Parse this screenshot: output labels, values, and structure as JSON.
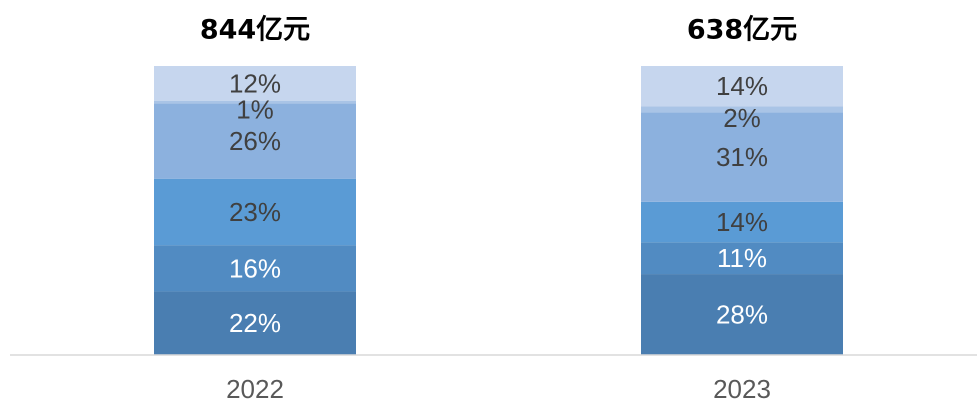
{
  "chart_data": {
    "type": "bar",
    "stacked": true,
    "percent_stacked": true,
    "categories": [
      "2022",
      "2023"
    ],
    "totals": [
      "844亿元",
      "638亿元"
    ],
    "series": [
      {
        "values": [
          22,
          28
        ],
        "labels": [
          "22%",
          "28%"
        ],
        "color": "#4a7eb1",
        "label_color": "#ffffff"
      },
      {
        "values": [
          16,
          11
        ],
        "labels": [
          "16%",
          "11%"
        ],
        "color": "#518bc2",
        "label_color": "#ffffff"
      },
      {
        "values": [
          23,
          14
        ],
        "labels": [
          "23%",
          "14%"
        ],
        "color": "#5a9bd5",
        "label_color": "#404040"
      },
      {
        "values": [
          26,
          31
        ],
        "labels": [
          "26%",
          "31%"
        ],
        "color": "#8cb1de",
        "label_color": "#404040"
      },
      {
        "values": [
          1,
          2
        ],
        "labels": [
          "1%",
          "2%"
        ],
        "color": "#a9c4e6",
        "label_color": "#404040"
      },
      {
        "values": [
          12,
          14
        ],
        "labels": [
          "12%",
          "14%"
        ],
        "color": "#c6d6ee",
        "label_color": "#404040"
      }
    ],
    "ylim": [
      0,
      100
    ],
    "grid": false,
    "legend": "none"
  }
}
